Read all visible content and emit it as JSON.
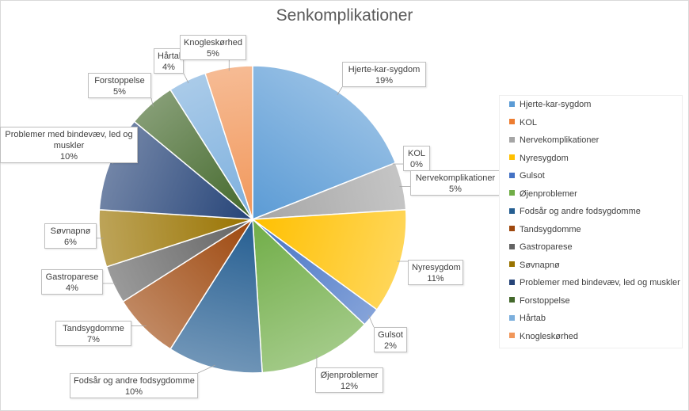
{
  "chart_data": {
    "type": "pie",
    "title": "Senkomplikationer",
    "slices": [
      {
        "name": "Hjerte-kar-sygdom",
        "pct": "19%",
        "value": 19,
        "color": "#5b9bd5"
      },
      {
        "name": "KOL",
        "pct": "0%",
        "value": 0,
        "color": "#ed7d31"
      },
      {
        "name": "Nervekomplikationer",
        "pct": "5%",
        "value": 5,
        "color": "#a5a5a5"
      },
      {
        "name": "Nyresygdom",
        "pct": "11%",
        "value": 11,
        "color": "#ffc000"
      },
      {
        "name": "Gulsot",
        "pct": "2%",
        "value": 2,
        "color": "#4472c4"
      },
      {
        "name": "Øjenproblemer",
        "pct": "12%",
        "value": 12,
        "color": "#70ad47"
      },
      {
        "name": "Fodsår og andre fodsygdomme",
        "pct": "10%",
        "value": 10,
        "color": "#255e91"
      },
      {
        "name": "Tandsygdomme",
        "pct": "7%",
        "value": 7,
        "color": "#9e480e"
      },
      {
        "name": "Gastroparese",
        "pct": "4%",
        "value": 4,
        "color": "#636363"
      },
      {
        "name": "Søvnapnø",
        "pct": "6%",
        "value": 6,
        "color": "#997300"
      },
      {
        "name": "Problemer med bindevæv, led og muskler",
        "pct": "10%",
        "value": 10,
        "color": "#264478"
      },
      {
        "name": "Forstoppelse",
        "pct": "5%",
        "value": 5,
        "color": "#43682b"
      },
      {
        "name": "Hårtab",
        "pct": "4%",
        "value": 4,
        "color": "#7cafdd"
      },
      {
        "name": "Knogleskørhed",
        "pct": "5%",
        "value": 5,
        "color": "#f1975a"
      }
    ],
    "callout_labels": [
      "Hjerte-kar-sygdom",
      "KOL",
      "Nervekomplikationer",
      "Nyresygdom",
      "Gulsot",
      "Øjenproblemer",
      "Fodsår og andre fodsygdomme",
      "Tandsygdomme",
      "Gastroparese",
      "Søvnapnø",
      "Problemer med bindevæv, led og\nmuskler",
      "Forstoppelse",
      "Hårtab",
      "Knogleskørhed"
    ],
    "legend_position": "right"
  }
}
